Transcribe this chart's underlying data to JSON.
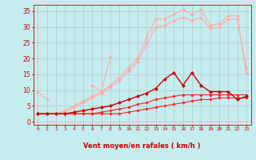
{
  "xlabel": "Vent moyen/en rafales ( km/h )",
  "background_color": "#c5ecee",
  "grid_color": "#b0b0b0",
  "text_color": "#cc0000",
  "x_values": [
    0,
    1,
    2,
    3,
    4,
    5,
    6,
    7,
    8,
    9,
    10,
    11,
    12,
    13,
    14,
    15,
    16,
    17,
    18,
    19,
    20,
    21,
    22,
    23
  ],
  "ylim": [
    -1,
    37
  ],
  "xlim": [
    -0.5,
    23.5
  ],
  "yticks": [
    0,
    5,
    10,
    15,
    20,
    25,
    30,
    35
  ],
  "series": [
    {
      "y": [
        2.5,
        2.5,
        2.5,
        2.5,
        2.5,
        2.5,
        2.5,
        2.5,
        2.5,
        2.5,
        3.0,
        3.5,
        4.0,
        4.5,
        5.0,
        5.5,
        6.0,
        6.5,
        7.0,
        7.0,
        7.5,
        7.5,
        7.5,
        7.5
      ],
      "color": "#ff2222",
      "lw": 0.8,
      "marker": "D",
      "ms": 1.8,
      "zorder": 6
    },
    {
      "y": [
        2.5,
        2.5,
        2.5,
        2.5,
        2.5,
        2.5,
        2.5,
        3.0,
        3.5,
        4.0,
        4.5,
        5.5,
        6.0,
        7.0,
        7.5,
        8.0,
        8.5,
        8.5,
        8.5,
        8.5,
        8.5,
        8.5,
        8.5,
        8.5
      ],
      "color": "#ff2222",
      "lw": 0.8,
      "marker": "D",
      "ms": 1.8,
      "zorder": 6
    },
    {
      "y": [
        2.5,
        2.5,
        2.5,
        2.5,
        3.0,
        3.5,
        4.0,
        4.5,
        5.0,
        6.0,
        7.0,
        8.0,
        9.0,
        10.5,
        13.5,
        15.5,
        11.5,
        15.5,
        11.5,
        9.5,
        9.5,
        9.5,
        7.0,
        8.0
      ],
      "color": "#cc0000",
      "lw": 1.0,
      "marker": "D",
      "ms": 2.2,
      "zorder": 7
    },
    {
      "y": [
        9.5,
        7.0,
        null,
        null,
        null,
        null,
        null,
        null,
        null,
        null,
        null,
        null,
        null,
        null,
        null,
        null,
        null,
        null,
        null,
        null,
        null,
        null,
        null,
        null
      ],
      "color": "#ffaaaa",
      "lw": 0.8,
      "marker": "D",
      "ms": 2.0,
      "zorder": 4
    },
    {
      "y": [
        null,
        null,
        null,
        null,
        null,
        null,
        11.5,
        9.5,
        20.5,
        null,
        null,
        null,
        null,
        null,
        null,
        null,
        null,
        null,
        null,
        null,
        null,
        null,
        null,
        null
      ],
      "color": "#ffaaaa",
      "lw": 0.8,
      "marker": "D",
      "ms": 2.0,
      "zorder": 4
    },
    {
      "y": [
        2.5,
        2.5,
        2.5,
        3.5,
        5.0,
        6.5,
        8.0,
        9.5,
        11.5,
        14.0,
        17.0,
        20.0,
        26.5,
        32.5,
        32.5,
        34.0,
        35.5,
        34.0,
        35.5,
        30.5,
        31.0,
        33.5,
        33.5,
        15.5
      ],
      "color": "#ffaaaa",
      "lw": 0.8,
      "marker": "D",
      "ms": 2.0,
      "zorder": 3
    },
    {
      "y": [
        2.5,
        2.5,
        2.5,
        3.0,
        4.5,
        6.0,
        7.5,
        9.0,
        11.0,
        13.0,
        16.0,
        19.0,
        24.5,
        30.0,
        30.5,
        32.0,
        33.0,
        32.0,
        33.0,
        29.5,
        30.0,
        32.5,
        32.5,
        17.0
      ],
      "color": "#ffaaaa",
      "lw": 0.8,
      "marker": "D",
      "ms": 2.0,
      "zorder": 3
    }
  ],
  "arrows": [
    "↑",
    "←",
    "←",
    "←",
    "←",
    "←",
    "←",
    "←",
    "↗",
    "↘",
    "→",
    "↘",
    "↘",
    "→",
    "→",
    "→",
    "↓",
    "↓",
    "↓",
    "→",
    "→",
    "↓",
    "↓",
    "↓"
  ]
}
